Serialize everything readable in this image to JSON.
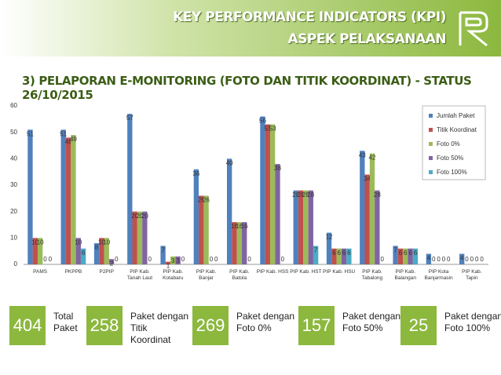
{
  "header": {
    "title": "KEY PERFORMANCE INDICATORS (KPI)",
    "subtitle": "ASPEK PELAKSANAAN"
  },
  "chart_data": {
    "type": "bar",
    "title": "3) PELAPORAN E-MONITORING (FOTO DAN TITIK KOORDINAT) - STATUS 26/10/2015",
    "categories": [
      "PAMS",
      "PKPPB",
      "P2PIP",
      "PIP Kab. Tanah Laut",
      "PIP Kab. Kotabaru",
      "PIP Kab. Banjar",
      "PIP Kab. Batola",
      "PIP Kab. HSS",
      "PIP Kab. HST",
      "PIP Kab. HSU",
      "PIP Kab. Tabalong",
      "PIP Kab. Balangan",
      "PIP Kota Banjarmasin",
      "PIP Kab. Tapin"
    ],
    "series": [
      {
        "name": "Jumlah Paket",
        "color": "#4f81bd",
        "values": [
          51,
          51,
          8,
          57,
          7,
          36,
          40,
          56,
          28,
          12,
          43,
          7,
          4,
          4
        ]
      },
      {
        "name": "Titik Koordinat",
        "color": "#c0504d",
        "values": [
          10,
          48,
          10,
          20,
          1,
          26,
          16,
          53,
          28,
          6,
          34,
          6,
          0,
          0
        ]
      },
      {
        "name": "Foto 0%",
        "color": "#9bbb59",
        "values": [
          10,
          49,
          10,
          20,
          3,
          26,
          16,
          53,
          28,
          6,
          42,
          6,
          0,
          0
        ]
      },
      {
        "name": "Foto 50%",
        "color": "#8064a2",
        "values": [
          0,
          10,
          2,
          20,
          3,
          0,
          16,
          38,
          28,
          6,
          28,
          6,
          0,
          0
        ]
      },
      {
        "name": "Foto 100%",
        "color": "#4bacc6",
        "values": [
          0,
          6,
          0,
          0,
          0,
          0,
          0,
          0,
          7,
          6,
          0,
          6,
          0,
          0
        ]
      }
    ],
    "ylim": [
      0,
      60
    ],
    "yticks": [
      0,
      10,
      20,
      30,
      40,
      50,
      60
    ],
    "grid": false,
    "legend": "top-right"
  },
  "kpis": [
    {
      "value": 404,
      "label": "Total Paket"
    },
    {
      "value": 258,
      "label": "Paket dengan Titik Koordinat"
    },
    {
      "value": 269,
      "label": "Paket dengan Foto 0%"
    },
    {
      "value": 157,
      "label": "Paket dengan Foto 50%"
    },
    {
      "value": 25,
      "label": "Paket dengan Foto 100%"
    }
  ]
}
